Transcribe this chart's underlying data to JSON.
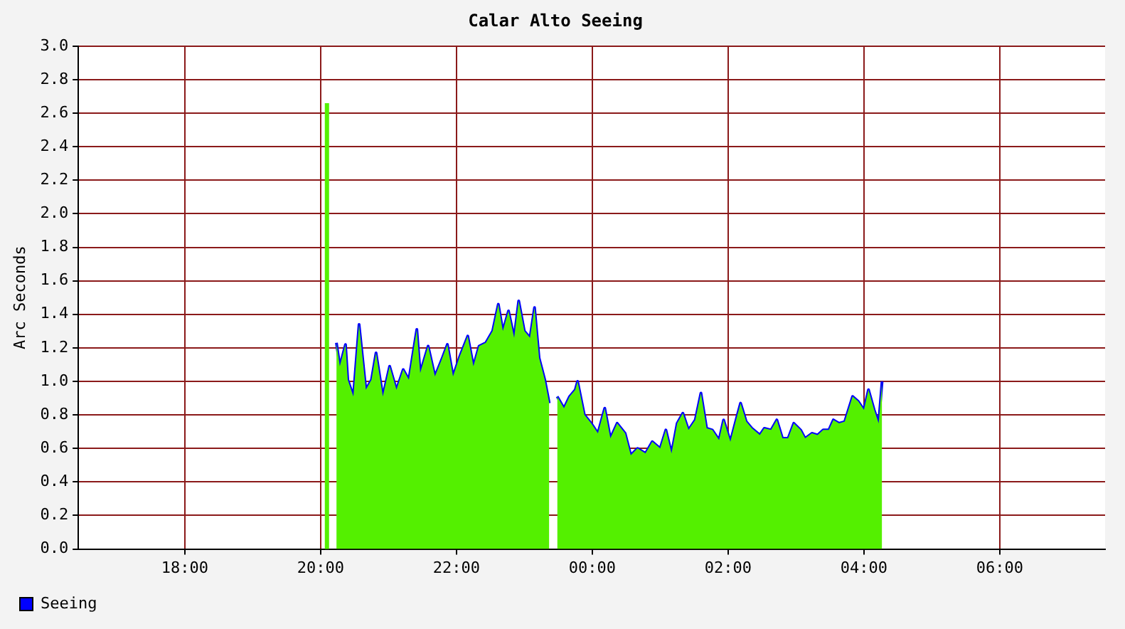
{
  "chart_data": {
    "type": "area",
    "title": "Calar Alto Seeing",
    "ylabel": "Arc Seconds",
    "x": [
      "2000-01-01T20:05",
      "2000-01-01T20:09",
      "2000-01-01T20:14",
      "2000-01-01T20:17",
      "2000-01-01T20:22",
      "2000-01-01T20:24",
      "2000-01-01T20:29",
      "2000-01-01T20:34",
      "2000-01-01T20:40",
      "2000-01-01T20:45",
      "2000-01-01T20:49",
      "2000-01-01T20:55",
      "2000-01-01T21:01",
      "2000-01-01T21:07",
      "2000-01-01T21:13",
      "2000-01-01T21:18",
      "2000-01-01T21:25",
      "2000-01-01T21:28",
      "2000-01-01T21:35",
      "2000-01-01T21:41",
      "2000-01-01T21:47",
      "2000-01-01T21:52",
      "2000-01-01T21:57",
      "2000-01-01T22:03",
      "2000-01-01T22:10",
      "2000-01-01T22:15",
      "2000-01-01T22:20",
      "2000-01-01T22:26",
      "2000-01-01T22:32",
      "2000-01-01T22:37",
      "2000-01-01T22:41",
      "2000-01-01T22:46",
      "2000-01-01T22:51",
      "2000-01-01T22:55",
      "2000-01-01T23:00",
      "2000-01-01T23:05",
      "2000-01-01T23:09",
      "2000-01-01T23:13",
      "2000-01-01T23:18",
      "2000-01-01T23:22",
      "2000-01-01T23:26",
      "2000-01-01T23:29",
      "2000-01-01T23:35",
      "2000-01-01T23:40",
      "2000-01-01T23:45",
      "2000-01-01T23:47",
      "2000-01-01T23:53",
      "2000-01-01T23:59",
      "2000-01-02T00:05",
      "2000-01-02T00:11",
      "2000-01-02T00:16",
      "2000-01-02T00:22",
      "2000-01-02T00:29",
      "2000-01-02T00:34",
      "2000-01-02T00:40",
      "2000-01-02T00:47",
      "2000-01-02T00:53",
      "2000-01-02T01:00",
      "2000-01-02T01:05",
      "2000-01-02T01:10",
      "2000-01-02T01:15",
      "2000-01-02T01:20",
      "2000-01-02T01:25",
      "2000-01-02T01:31",
      "2000-01-02T01:36",
      "2000-01-02T01:41",
      "2000-01-02T01:46",
      "2000-01-02T01:52",
      "2000-01-02T01:56",
      "2000-01-02T02:02",
      "2000-01-02T02:07",
      "2000-01-02T02:11",
      "2000-01-02T02:16",
      "2000-01-02T02:21",
      "2000-01-02T02:28",
      "2000-01-02T02:32",
      "2000-01-02T02:38",
      "2000-01-02T02:43",
      "2000-01-02T02:48",
      "2000-01-02T02:53",
      "2000-01-02T02:58",
      "2000-01-02T03:04",
      "2000-01-02T03:08",
      "2000-01-02T03:14",
      "2000-01-02T03:19",
      "2000-01-02T03:24",
      "2000-01-02T03:29",
      "2000-01-02T03:33",
      "2000-01-02T03:38",
      "2000-01-02T03:43",
      "2000-01-02T03:50",
      "2000-01-02T03:55",
      "2000-01-02T04:00",
      "2000-01-02T04:04",
      "2000-01-02T04:09",
      "2000-01-02T04:13",
      "2000-01-02T04:16"
    ],
    "series": [
      {
        "type": "area",
        "color": "#54f000",
        "values": [
          2.66,
          null,
          1.23,
          1.09,
          1.22,
          1.01,
          0.91,
          1.34,
          0.95,
          1.01,
          1.17,
          0.91,
          1.09,
          0.95,
          1.07,
          1.01,
          1.31,
          1.05,
          1.21,
          1.03,
          1.13,
          1.22,
          1.03,
          1.15,
          1.27,
          1.09,
          1.21,
          1.23,
          1.3,
          1.46,
          1.3,
          1.42,
          1.26,
          1.48,
          1.3,
          1.26,
          1.44,
          1.14,
          1.01,
          0.87,
          null,
          0.91,
          0.84,
          0.91,
          0.95,
          1.0,
          0.8,
          0.75,
          0.69,
          0.84,
          0.66,
          0.75,
          0.69,
          0.56,
          0.6,
          0.57,
          0.64,
          0.6,
          0.71,
          0.57,
          0.75,
          0.81,
          0.71,
          0.77,
          0.93,
          0.72,
          0.71,
          0.65,
          0.77,
          0.64,
          0.77,
          0.87,
          0.76,
          0.72,
          0.68,
          0.72,
          0.71,
          0.77,
          0.66,
          0.66,
          0.75,
          0.71,
          0.66,
          0.69,
          0.68,
          0.71,
          0.71,
          0.77,
          0.75,
          0.76,
          0.91,
          0.88,
          0.83,
          0.95,
          0.83,
          0.75,
          1.0
        ]
      },
      {
        "type": "line",
        "name": "Seeing",
        "color": "#0000ff",
        "values": [
          null,
          null,
          1.23,
          1.09,
          1.22,
          1.01,
          0.91,
          1.34,
          0.95,
          1.01,
          1.17,
          0.91,
          1.09,
          0.95,
          1.07,
          1.01,
          1.31,
          1.05,
          1.21,
          1.03,
          1.13,
          1.22,
          1.03,
          1.15,
          1.27,
          1.09,
          1.21,
          1.23,
          1.3,
          1.46,
          1.3,
          1.42,
          1.26,
          1.48,
          1.3,
          1.26,
          1.44,
          1.14,
          1.01,
          0.87,
          null,
          0.91,
          0.84,
          0.91,
          0.95,
          1.0,
          0.8,
          0.75,
          0.69,
          0.84,
          0.66,
          0.75,
          0.69,
          0.56,
          0.6,
          0.57,
          0.64,
          0.6,
          0.71,
          0.57,
          0.75,
          0.81,
          0.71,
          0.77,
          0.93,
          0.72,
          0.71,
          0.65,
          0.77,
          0.64,
          0.77,
          0.87,
          0.76,
          0.72,
          0.68,
          0.72,
          0.71,
          0.77,
          0.66,
          0.66,
          0.75,
          0.71,
          0.66,
          0.69,
          0.68,
          0.71,
          0.71,
          0.77,
          0.75,
          0.76,
          0.91,
          0.88,
          0.83,
          0.95,
          0.83,
          0.75,
          1.0
        ]
      }
    ],
    "xlim": [
      "2000-01-01T16:26",
      "2000-01-02T07:33"
    ],
    "xticks": [
      {
        "value": "2000-01-01T18:00",
        "label": "18:00"
      },
      {
        "value": "2000-01-01T20:00",
        "label": "20:00"
      },
      {
        "value": "2000-01-01T22:00",
        "label": "22:00"
      },
      {
        "value": "2000-01-02T00:00",
        "label": "00:00"
      },
      {
        "value": "2000-01-02T02:00",
        "label": "02:00"
      },
      {
        "value": "2000-01-02T04:00",
        "label": "04:00"
      },
      {
        "value": "2000-01-02T06:00",
        "label": "06:00"
      }
    ],
    "ylim": [
      0,
      3
    ],
    "yticks": [
      {
        "value": 0,
        "label": "0.0"
      },
      0.2,
      0.4,
      0.6,
      0.8,
      {
        "value": 1,
        "label": "1.0"
      },
      1.2,
      1.4,
      1.6,
      1.8,
      {
        "value": 2,
        "label": "2.0"
      },
      2.2,
      2.4,
      2.6,
      2.8,
      {
        "value": 3,
        "label": "3.0"
      }
    ],
    "grid": true,
    "legend": "bottom left",
    "marker": "none",
    "line_style": "solid"
  }
}
